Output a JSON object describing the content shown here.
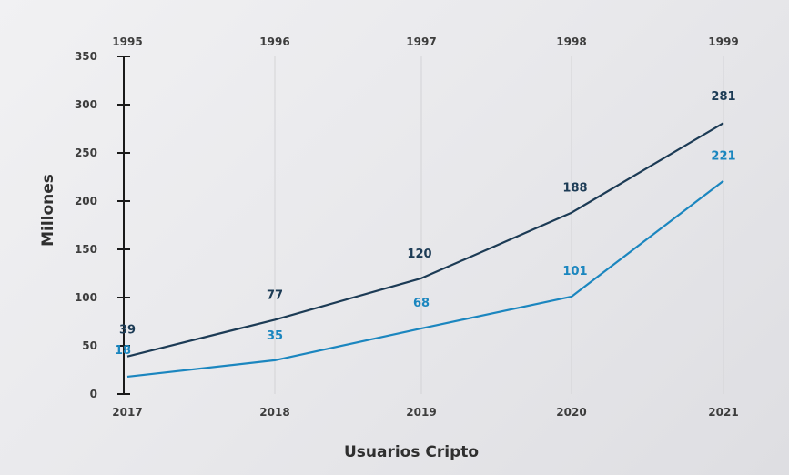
{
  "chart_data": {
    "type": "line",
    "title": "",
    "xlabel": "Usuarios Cripto",
    "ylabel": "Millones",
    "x": [
      "2017",
      "2018",
      "2019",
      "2020",
      "2021"
    ],
    "x_top": [
      "1995",
      "1996",
      "1997",
      "1998",
      "1999"
    ],
    "y_ticks": [
      "0",
      "50",
      "100",
      "150",
      "200",
      "250",
      "300",
      "350"
    ],
    "ylim": [
      0,
      350
    ],
    "grid": "vertical",
    "series": [
      {
        "color": "#1c3b55",
        "values": [
          39,
          77,
          120,
          188,
          281
        ],
        "labels": [
          "39",
          "77",
          "120",
          "188",
          "281"
        ]
      },
      {
        "color": "#1b86bf",
        "values": [
          18,
          35,
          68,
          101,
          221
        ],
        "labels": [
          "18",
          "35",
          "68",
          "101",
          "221"
        ]
      }
    ]
  }
}
